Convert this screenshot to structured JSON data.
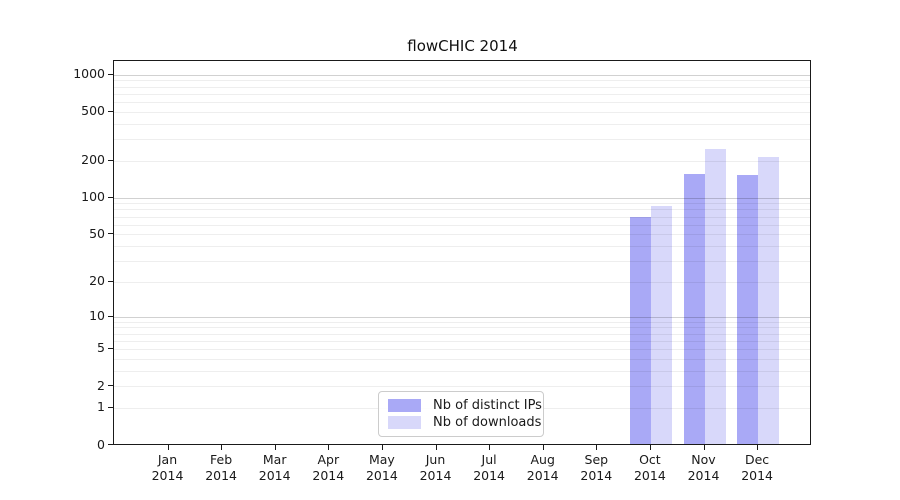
{
  "title": "flowCHIC 2014",
  "chart_data": {
    "type": "bar",
    "title": "flowCHIC 2014",
    "scale": "log1p",
    "xlabel": "",
    "ylabel": "",
    "ylim": [
      0,
      1290
    ],
    "grid": "horizontal",
    "legend_position": "bottom-center",
    "categories": [
      {
        "month": "Jan",
        "year": "2014"
      },
      {
        "month": "Feb",
        "year": "2014"
      },
      {
        "month": "Mar",
        "year": "2014"
      },
      {
        "month": "Apr",
        "year": "2014"
      },
      {
        "month": "May",
        "year": "2014"
      },
      {
        "month": "Jun",
        "year": "2014"
      },
      {
        "month": "Jul",
        "year": "2014"
      },
      {
        "month": "Aug",
        "year": "2014"
      },
      {
        "month": "Sep",
        "year": "2014"
      },
      {
        "month": "Oct",
        "year": "2014"
      },
      {
        "month": "Nov",
        "year": "2014"
      },
      {
        "month": "Dec",
        "year": "2014"
      }
    ],
    "series": [
      {
        "name": "Nb of distinct IPs",
        "color": "#a9a9f6",
        "values": [
          0,
          0,
          0,
          0,
          0,
          0,
          0,
          0,
          0,
          68,
          152,
          150
        ]
      },
      {
        "name": "Nb of downloads",
        "color": "#d8d8fa",
        "values": [
          0,
          0,
          0,
          0,
          0,
          0,
          0,
          0,
          0,
          83,
          246,
          212
        ]
      }
    ],
    "yticks": [
      0,
      1,
      2,
      5,
      10,
      20,
      50,
      100,
      200,
      500,
      1000
    ],
    "gridlines_major": [
      10,
      100,
      1000
    ],
    "gridlines_minor": [
      1,
      2,
      3,
      4,
      5,
      6,
      7,
      8,
      9,
      20,
      30,
      40,
      50,
      60,
      70,
      80,
      90,
      200,
      300,
      400,
      500,
      600,
      700,
      800,
      900
    ],
    "colors": {
      "axis": "#1a1a1a",
      "grid_minor": "#ececec",
      "grid_major": "#cccccc"
    }
  }
}
